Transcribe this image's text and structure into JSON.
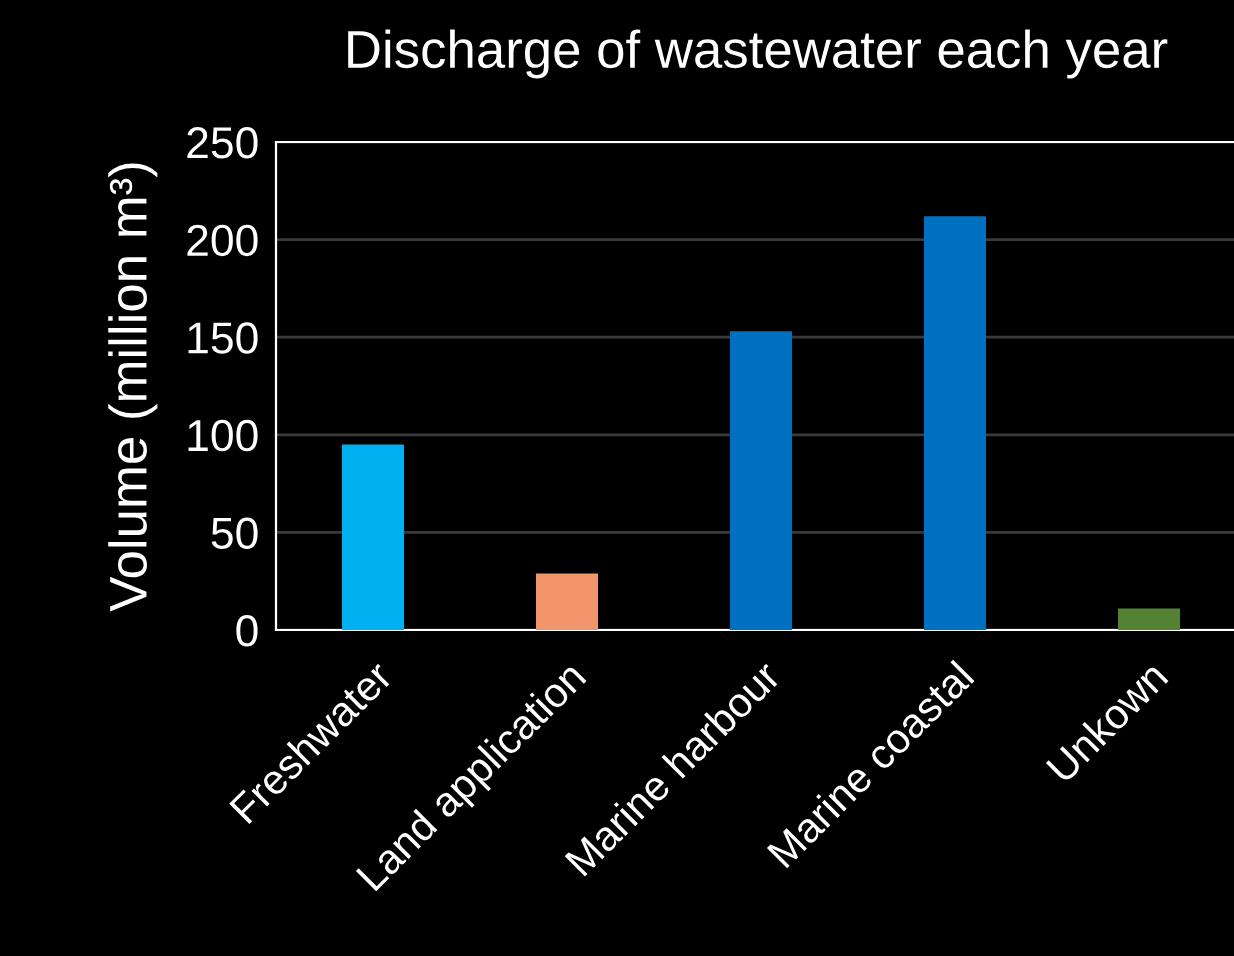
{
  "chart_data": {
    "type": "bar",
    "title": "Discharge of wastewater each year",
    "ylabel": "Volume (million m³)",
    "categories": [
      "Freshwater",
      "Land application",
      "Marine harbour",
      "Marine coastal",
      "Unkown"
    ],
    "values": [
      95,
      29,
      153,
      212,
      11
    ],
    "colors": [
      "#00b0f0",
      "#f0956c",
      "#0070c0",
      "#0070c0",
      "#548235"
    ],
    "ylim": [
      0,
      250
    ],
    "yticks": [
      0,
      50,
      100,
      150,
      200,
      250
    ],
    "grid": "y"
  }
}
